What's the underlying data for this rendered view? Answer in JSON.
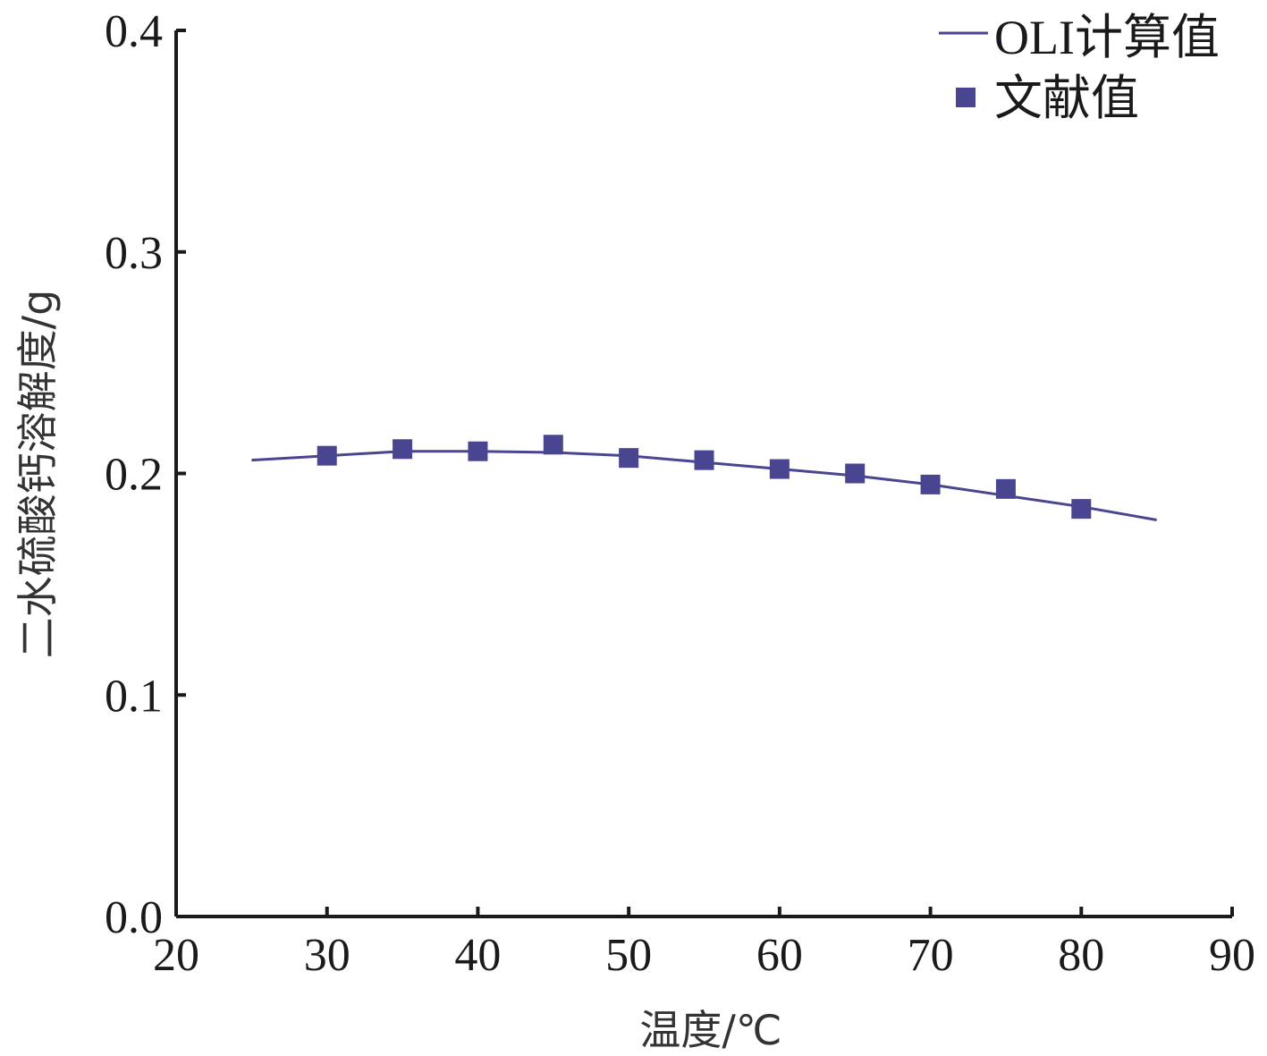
{
  "chart_data": {
    "type": "line",
    "xlabel": "温度/℃",
    "ylabel": "二水硫酸钙溶解度/g",
    "xlim": [
      20,
      90
    ],
    "ylim": [
      0.0,
      0.4
    ],
    "x_ticks": [
      "20",
      "30",
      "40",
      "50",
      "60",
      "70",
      "80",
      "90"
    ],
    "y_ticks": [
      "0.0",
      "0.1",
      "0.2",
      "0.3",
      "0.4"
    ],
    "grid": false,
    "legend_position": "top-right",
    "colors": {
      "series": "#4a4590",
      "axis": "#1a1a1a"
    },
    "series": [
      {
        "name": "OLI计算值",
        "kind": "line",
        "x": [
          25,
          30,
          35,
          40,
          45,
          50,
          55,
          60,
          65,
          70,
          75,
          80,
          85
        ],
        "y": [
          0.206,
          0.208,
          0.21,
          0.21,
          0.2095,
          0.208,
          0.205,
          0.202,
          0.199,
          0.195,
          0.19,
          0.185,
          0.179
        ]
      },
      {
        "name": "文献值",
        "kind": "marker",
        "marker": "square",
        "x": [
          30,
          35,
          40,
          45,
          50,
          55,
          60,
          65,
          70,
          75,
          80
        ],
        "y": [
          0.208,
          0.211,
          0.21,
          0.213,
          0.207,
          0.206,
          0.202,
          0.2,
          0.195,
          0.193,
          0.184
        ]
      }
    ]
  }
}
